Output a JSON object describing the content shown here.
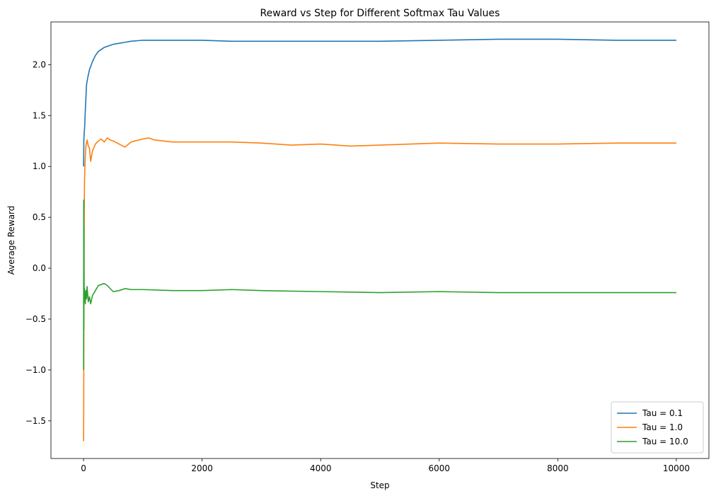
{
  "chart_data": {
    "type": "line",
    "title": "Reward vs Step for Different Softmax Tau Values",
    "xlabel": "Step",
    "ylabel": "Average Reward",
    "xlim": [
      -550,
      10550
    ],
    "ylim": [
      -1.87,
      2.42
    ],
    "xticks": [
      0,
      2000,
      4000,
      6000,
      8000,
      10000
    ],
    "xtick_labels": [
      "0",
      "2000",
      "4000",
      "6000",
      "8000",
      "10000"
    ],
    "yticks": [
      -1.5,
      -1.0,
      -0.5,
      0.0,
      0.5,
      1.0,
      1.5,
      2.0
    ],
    "ytick_labels": [
      "−1.5",
      "−1.0",
      "−0.5",
      "0.0",
      "0.5",
      "1.0",
      "1.5",
      "2.0"
    ],
    "grid": false,
    "legend_position": "lower-right",
    "series": [
      {
        "name": "Tau = 0.1",
        "color": "#1f77b4",
        "x": [
          1,
          5,
          10,
          20,
          30,
          50,
          70,
          100,
          150,
          200,
          250,
          300,
          350,
          400,
          500,
          600,
          700,
          800,
          1000,
          1200,
          1500,
          2000,
          2500,
          3000,
          4000,
          5000,
          6000,
          7000,
          8000,
          9000,
          10000
        ],
        "y": [
          1.0,
          1.25,
          1.32,
          1.4,
          1.55,
          1.8,
          1.87,
          1.95,
          2.03,
          2.09,
          2.13,
          2.15,
          2.17,
          2.18,
          2.2,
          2.21,
          2.22,
          2.23,
          2.24,
          2.24,
          2.24,
          2.24,
          2.23,
          2.23,
          2.23,
          2.23,
          2.24,
          2.25,
          2.25,
          2.24,
          2.24
        ]
      },
      {
        "name": "Tau = 1.0",
        "color": "#ff7f0e",
        "x": [
          1,
          3,
          5,
          8,
          10,
          15,
          20,
          30,
          40,
          60,
          80,
          100,
          120,
          150,
          200,
          250,
          300,
          350,
          400,
          450,
          500,
          600,
          700,
          800,
          1000,
          1100,
          1200,
          1500,
          2000,
          2500,
          3000,
          3500,
          4000,
          4500,
          5000,
          6000,
          7000,
          8000,
          9000,
          10000
        ],
        "y": [
          -1.7,
          -1.4,
          -0.8,
          -0.2,
          0.3,
          0.8,
          0.95,
          1.1,
          1.2,
          1.26,
          1.2,
          1.18,
          1.05,
          1.15,
          1.22,
          1.25,
          1.27,
          1.24,
          1.28,
          1.26,
          1.25,
          1.22,
          1.19,
          1.24,
          1.27,
          1.28,
          1.26,
          1.24,
          1.24,
          1.24,
          1.23,
          1.21,
          1.22,
          1.2,
          1.21,
          1.23,
          1.22,
          1.22,
          1.23,
          1.23
        ]
      },
      {
        "name": "Tau = 10.0",
        "color": "#2ca02c",
        "x": [
          1,
          3,
          5,
          7,
          10,
          15,
          20,
          30,
          40,
          50,
          60,
          80,
          100,
          120,
          150,
          200,
          250,
          300,
          350,
          400,
          500,
          600,
          700,
          800,
          1000,
          1500,
          2000,
          2500,
          3000,
          4000,
          5000,
          6000,
          7000,
          8000,
          9000,
          10000
        ],
        "y": [
          -1.0,
          0.67,
          -0.6,
          0.4,
          -0.3,
          -0.2,
          -0.25,
          -0.35,
          -0.22,
          -0.3,
          -0.18,
          -0.33,
          -0.28,
          -0.35,
          -0.27,
          -0.22,
          -0.17,
          -0.16,
          -0.15,
          -0.17,
          -0.23,
          -0.22,
          -0.2,
          -0.21,
          -0.21,
          -0.22,
          -0.22,
          -0.21,
          -0.22,
          -0.23,
          -0.24,
          -0.23,
          -0.24,
          -0.24,
          -0.24,
          -0.24
        ]
      }
    ]
  }
}
